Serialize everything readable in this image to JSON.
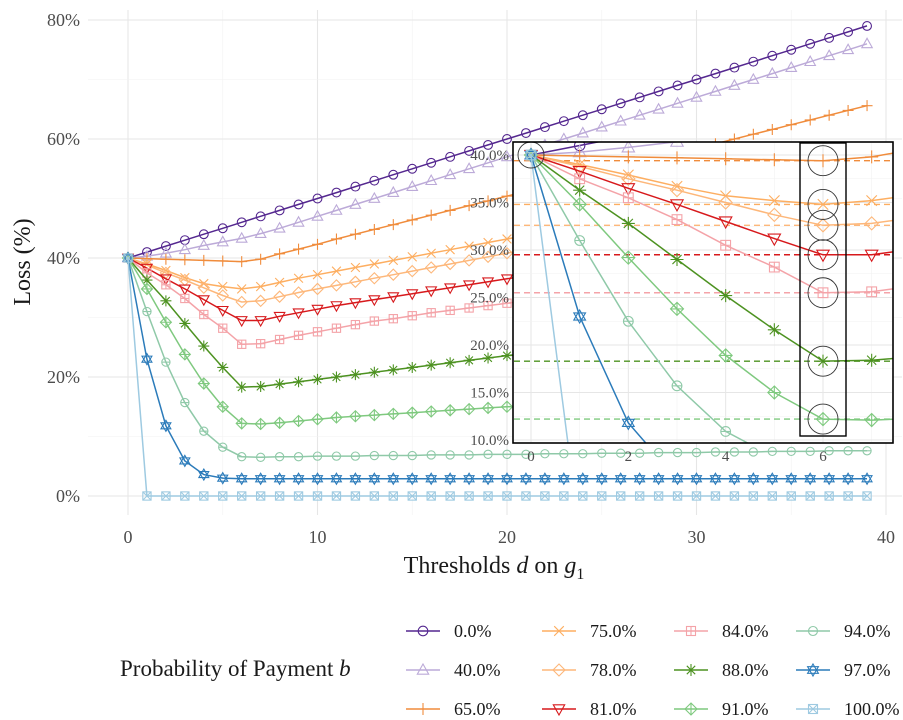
{
  "chart_data": [
    {
      "type": "line",
      "title": "",
      "xlabel": "Thresholds d on g1",
      "ylabel": "Loss (%)",
      "xlim": [
        -3,
        40.5
      ],
      "ylim": [
        -4,
        80
      ],
      "x_ticks": [
        0,
        10,
        20,
        30,
        40
      ],
      "x_tick_labels": [
        "0",
        "10",
        "20",
        "30",
        "40"
      ],
      "y_ticks": [
        0,
        20,
        40,
        60,
        80
      ],
      "y_tick_labels": [
        "0%",
        "20%",
        "40%",
        "60%",
        "80%"
      ],
      "grid": true,
      "legend_placement": "bottom",
      "legend_title": "Probability of Payment b",
      "x": [
        0,
        1,
        2,
        3,
        4,
        5,
        6,
        7,
        8,
        9,
        10,
        11,
        12,
        13,
        14,
        15,
        16,
        17,
        18,
        19,
        20,
        21,
        22,
        23,
        24,
        25,
        26,
        27,
        28,
        29,
        30,
        31,
        32,
        33,
        34,
        35,
        36,
        37,
        38,
        39
      ],
      "series": [
        {
          "name": "0.0%",
          "color": "#54278f",
          "marker": "circle",
          "values": [
            40,
            41.0,
            42.0,
            43.0,
            44.0,
            45.0,
            46.0,
            47.0,
            48.0,
            49.0,
            50.0,
            51.0,
            52.0,
            53.0,
            54.0,
            55.0,
            56.0,
            57.0,
            58.0,
            59.0,
            60.0,
            61.0,
            62.0,
            63.0,
            64.0,
            65.0,
            66.0,
            67.0,
            68.0,
            69.0,
            70.0,
            71.0,
            72.0,
            73.0,
            74.0,
            75.0,
            76.0,
            77.0,
            78.0,
            79.0
          ]
        },
        {
          "name": "40.0%",
          "color": "#bcaad8",
          "marker": "triangle-up",
          "values": [
            40,
            40.3,
            40.8,
            41.4,
            42.1,
            42.7,
            43.3,
            44.1,
            45.0,
            46.0,
            47.0,
            48.0,
            49.0,
            50.0,
            51.0,
            52.0,
            53.0,
            54.0,
            55.0,
            56.0,
            57.0,
            58.0,
            59.0,
            60.0,
            61.0,
            62.0,
            63.0,
            64.0,
            65.0,
            66.0,
            67.0,
            68.0,
            69.0,
            70.0,
            71.0,
            72.0,
            73.0,
            74.0,
            75.0,
            76.0
          ]
        },
        {
          "name": "65.0%",
          "color": "#f08c3c",
          "marker": "plus",
          "values": [
            40,
            39.9,
            39.8,
            39.7,
            39.6,
            39.5,
            39.4,
            39.8,
            40.7,
            41.5,
            42.3,
            43.2,
            44.0,
            44.8,
            45.6,
            46.4,
            47.2,
            48.0,
            48.8,
            49.6,
            50.4,
            51.2,
            52.0,
            52.8,
            53.6,
            54.4,
            55.2,
            56.0,
            56.8,
            57.6,
            58.4,
            59.2,
            60.0,
            60.8,
            61.6,
            62.4,
            63.2,
            64.0,
            64.8,
            65.6
          ]
        },
        {
          "name": "75.0%",
          "color": "#fdae61",
          "marker": "x",
          "values": [
            40,
            39.0,
            37.9,
            36.7,
            35.7,
            35.2,
            34.8,
            35.2,
            35.9,
            36.6,
            37.2,
            37.8,
            38.4,
            39.0,
            39.6,
            40.2,
            40.8,
            41.4,
            42.0,
            42.6,
            43.2,
            43.8,
            44.4,
            45.0,
            45.6,
            46.2,
            46.8,
            47.4,
            48.0,
            48.6,
            49.2,
            49.8,
            50.4,
            51.0,
            51.6,
            52.2,
            52.8,
            53.4,
            54.0,
            54.6
          ]
        },
        {
          "name": "78.0%",
          "color": "#fdb77a",
          "marker": "diamond",
          "values": [
            40,
            38.8,
            37.5,
            36.3,
            35.0,
            33.7,
            32.6,
            32.8,
            33.5,
            34.2,
            34.8,
            35.4,
            36.0,
            36.6,
            37.2,
            37.8,
            38.4,
            39.0,
            39.6,
            40.2,
            40.8,
            41.4,
            42.0,
            42.6,
            43.2,
            43.8,
            44.4,
            45.0,
            45.6,
            46.2,
            46.8,
            47.4,
            48.0,
            48.6,
            49.2,
            49.8,
            50.4,
            51.0,
            51.6,
            52.2
          ]
        },
        {
          "name": "81.0%",
          "color": "#d7191c",
          "marker": "triangle-down",
          "values": [
            40,
            38.3,
            36.5,
            34.8,
            33.0,
            31.2,
            29.5,
            29.5,
            30.2,
            30.8,
            31.4,
            32.0,
            32.5,
            33.0,
            33.5,
            34.0,
            34.5,
            35.0,
            35.5,
            36.0,
            36.5,
            37.0,
            37.5,
            38.0,
            38.5,
            39.0,
            39.5,
            40.0,
            40.5,
            41.0,
            41.5,
            42.0,
            42.5,
            43.0,
            43.5,
            44.0,
            44.5,
            45.0,
            45.5,
            46.0
          ]
        },
        {
          "name": "84.0%",
          "color": "#f4a3a8",
          "marker": "square-plus",
          "values": [
            40,
            37.5,
            35.5,
            33.2,
            30.5,
            28.2,
            25.5,
            25.6,
            26.3,
            27.0,
            27.6,
            28.2,
            28.8,
            29.4,
            29.8,
            30.3,
            30.8,
            31.2,
            31.6,
            32.0,
            32.4,
            32.8,
            33.2,
            33.6,
            34.0,
            34.4,
            34.8,
            35.2,
            35.6,
            36.0,
            36.4,
            36.8,
            37.2,
            37.6,
            38.0,
            38.4,
            38.8,
            39.2,
            39.6,
            40.0
          ]
        },
        {
          "name": "88.0%",
          "color": "#4d9221",
          "marker": "asterisk",
          "values": [
            40,
            36.3,
            32.8,
            29.0,
            25.2,
            21.6,
            18.3,
            18.4,
            18.8,
            19.2,
            19.6,
            20.0,
            20.4,
            20.8,
            21.2,
            21.6,
            22.0,
            22.4,
            22.8,
            23.2,
            23.6,
            24.0,
            24.4,
            24.8,
            25.2,
            25.6,
            26.0,
            26.4,
            26.8,
            27.2,
            27.6,
            28.0,
            28.4,
            28.8,
            29.2,
            29.6,
            30.0,
            30.4,
            30.8,
            31.2
          ]
        },
        {
          "name": "91.0%",
          "color": "#7fc97f",
          "marker": "circle-plus",
          "values": [
            40,
            34.8,
            29.2,
            23.8,
            18.9,
            15.0,
            12.2,
            12.1,
            12.3,
            12.6,
            12.9,
            13.2,
            13.4,
            13.6,
            13.8,
            14.0,
            14.2,
            14.4,
            14.6,
            14.8,
            15.0,
            15.2,
            15.4,
            15.6,
            15.8,
            16.0,
            16.2,
            16.4,
            16.6,
            16.8,
            17.0,
            17.2,
            17.4,
            17.6,
            17.8,
            18.0,
            18.2,
            18.4,
            18.6,
            18.8
          ]
        },
        {
          "name": "94.0%",
          "color": "#8fc9a8",
          "marker": "circle-minus",
          "values": [
            40,
            31.0,
            22.5,
            15.7,
            10.9,
            8.2,
            6.6,
            6.5,
            6.6,
            6.6,
            6.7,
            6.7,
            6.7,
            6.8,
            6.8,
            6.8,
            6.9,
            6.9,
            6.9,
            7.0,
            7.0,
            7.0,
            7.1,
            7.1,
            7.1,
            7.2,
            7.2,
            7.2,
            7.3,
            7.3,
            7.3,
            7.4,
            7.4,
            7.4,
            7.5,
            7.5,
            7.5,
            7.6,
            7.6,
            7.6
          ]
        },
        {
          "name": "97.0%",
          "color": "#2b7bba",
          "marker": "star",
          "values": [
            40,
            23.0,
            11.8,
            5.9,
            3.6,
            3.0,
            2.9,
            2.9,
            2.9,
            2.9,
            2.9,
            2.9,
            2.9,
            2.9,
            2.9,
            2.9,
            2.9,
            2.9,
            2.9,
            2.9,
            2.9,
            2.9,
            2.9,
            2.9,
            2.9,
            2.9,
            2.9,
            2.9,
            2.9,
            2.9,
            2.9,
            2.9,
            2.9,
            2.9,
            2.9,
            2.9,
            2.9,
            2.9,
            2.9,
            2.9
          ]
        },
        {
          "name": "100.0%",
          "color": "#9ecae1",
          "marker": "square-x",
          "values": [
            40,
            0,
            0,
            0,
            0,
            0,
            0,
            0,
            0,
            0,
            0,
            0,
            0,
            0,
            0,
            0,
            0,
            0,
            0,
            0,
            0,
            0,
            0,
            0,
            0,
            0,
            0,
            0,
            0,
            0,
            0,
            0,
            0,
            0,
            0,
            0,
            0,
            0,
            0,
            0
          ]
        }
      ]
    },
    {
      "type": "line",
      "title": "",
      "role": "inset zoom",
      "xlim": [
        -0.3,
        7
      ],
      "ylim": [
        9.8,
        41.3
      ],
      "x_ticks": [
        0,
        2,
        4,
        6
      ],
      "x_tick_labels": [
        "0",
        "2",
        "4",
        "6"
      ],
      "y_ticks": [
        10,
        15,
        20,
        25,
        30,
        35,
        40
      ],
      "y_tick_labels": [
        "10.0%",
        "15.0%",
        "20.0%",
        "25.0%",
        "30.0%",
        "35.0%",
        "40.0%"
      ],
      "grid": true,
      "minimum_marker_column_x": 6,
      "reference_lines": [
        {
          "series": "65.0%",
          "y": 39.4
        },
        {
          "series": "75.0%",
          "y": 34.8
        },
        {
          "series": "78.0%",
          "y": 32.6
        },
        {
          "series": "81.0%",
          "y": 29.5
        },
        {
          "series": "84.0%",
          "y": 25.5
        },
        {
          "series": "88.0%",
          "y": 18.3
        },
        {
          "series": "91.0%",
          "y": 12.2
        }
      ]
    }
  ]
}
